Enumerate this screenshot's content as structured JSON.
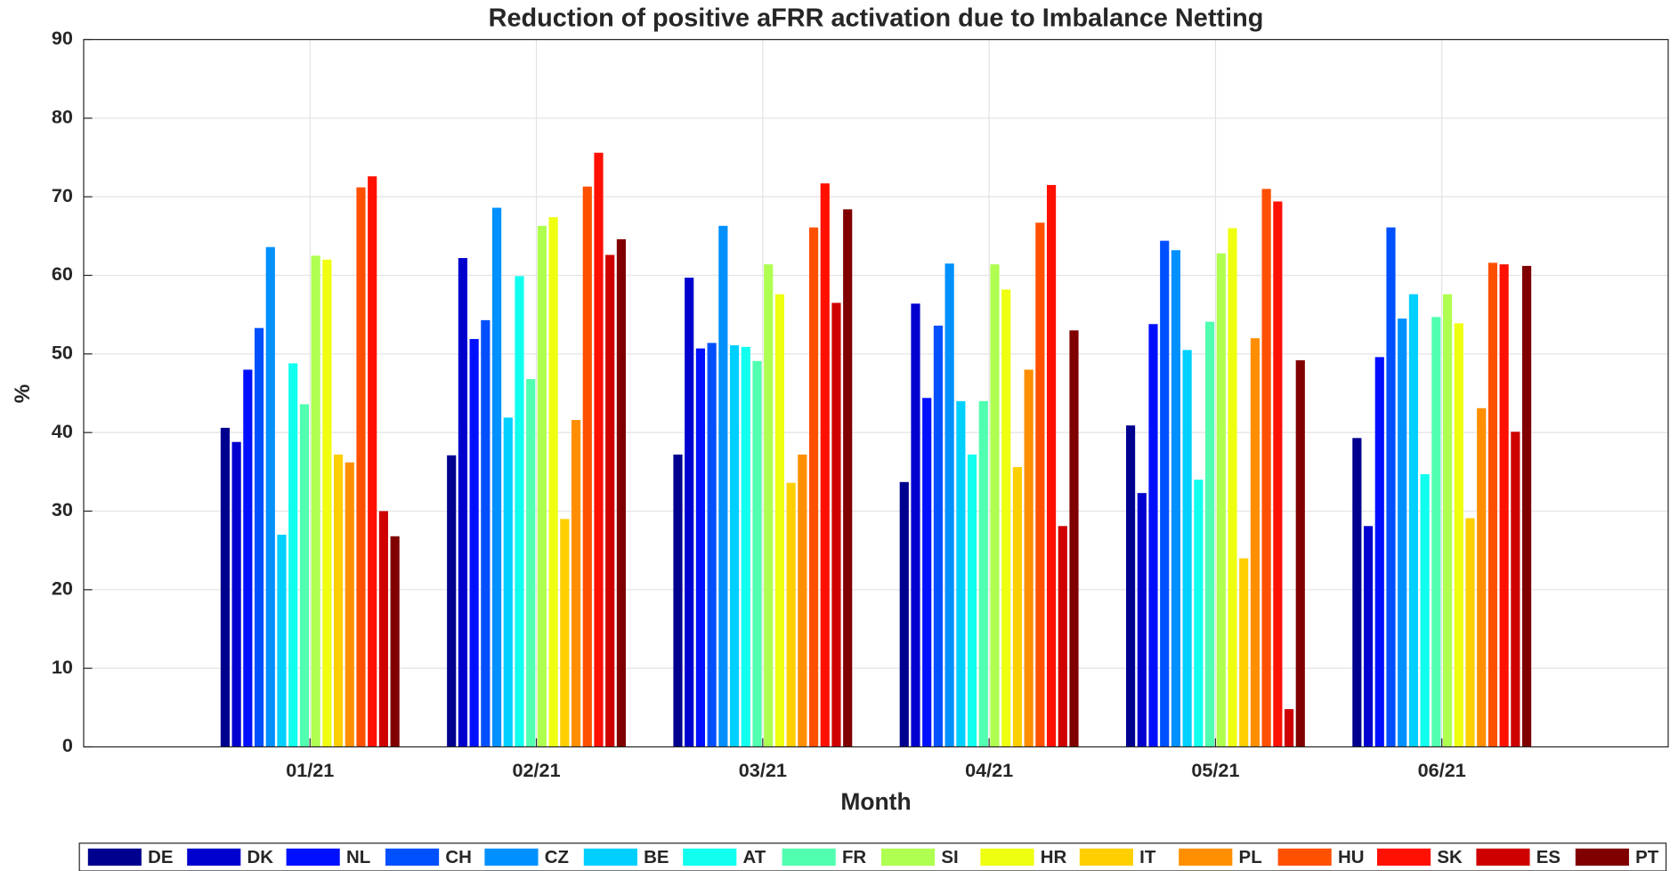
{
  "chart_data": {
    "type": "bar",
    "title": "Reduction of positive aFRR activation due to Imbalance Netting",
    "x_label": "Month",
    "y_label": "%",
    "categories": [
      "01/21",
      "02/21",
      "03/21",
      "04/21",
      "05/21",
      "06/21"
    ],
    "ylim": [
      0,
      90
    ],
    "yticks": [
      0,
      10,
      20,
      30,
      40,
      50,
      60,
      70,
      80,
      90
    ],
    "grid": true,
    "legend": "bottom",
    "series": [
      {
        "name": "DE",
        "color": "#00008f",
        "values": [
          40.6,
          37.1,
          37.2,
          33.7,
          40.9,
          39.3
        ]
      },
      {
        "name": "DK",
        "color": "#0000cf",
        "values": [
          38.8,
          62.2,
          59.7,
          56.4,
          32.3,
          28.1
        ]
      },
      {
        "name": "NL",
        "color": "#0010ff",
        "values": [
          48,
          51.9,
          50.7,
          44.4,
          53.8,
          49.6
        ]
      },
      {
        "name": "CH",
        "color": "#0050ff",
        "values": [
          53.3,
          54.3,
          51.4,
          53.6,
          64.4,
          66.1
        ]
      },
      {
        "name": "CZ",
        "color": "#0090ff",
        "values": [
          63.6,
          68.6,
          66.3,
          61.5,
          63.2,
          54.5
        ]
      },
      {
        "name": "BE",
        "color": "#00d0ff",
        "values": [
          27,
          41.9,
          51.1,
          44,
          50.5,
          57.6
        ]
      },
      {
        "name": "AT",
        "color": "#10ffef",
        "values": [
          48.8,
          59.9,
          50.9,
          37.2,
          34,
          34.7
        ]
      },
      {
        "name": "FR",
        "color": "#50ffaf",
        "values": [
          43.6,
          46.8,
          49.1,
          44,
          54.1,
          54.7
        ]
      },
      {
        "name": "SI",
        "color": "#afff50",
        "values": [
          62.5,
          66.3,
          61.4,
          61.4,
          62.8,
          57.6
        ]
      },
      {
        "name": "HR",
        "color": "#efff10",
        "values": [
          62,
          67.4,
          57.6,
          58.2,
          66,
          53.9
        ]
      },
      {
        "name": "IT",
        "color": "#ffcf00",
        "values": [
          37.2,
          29,
          33.6,
          35.6,
          24,
          29.1
        ]
      },
      {
        "name": "PL",
        "color": "#ff8f00",
        "values": [
          36.2,
          41.6,
          37.2,
          48,
          52,
          43.1
        ]
      },
      {
        "name": "HU",
        "color": "#ff5000",
        "values": [
          71.2,
          71.3,
          66.1,
          66.7,
          71,
          61.6
        ]
      },
      {
        "name": "SK",
        "color": "#ff1000",
        "values": [
          72.6,
          75.6,
          71.7,
          71.5,
          69.4,
          61.4
        ]
      },
      {
        "name": "ES",
        "color": "#cf0000",
        "values": [
          30,
          62.6,
          56.5,
          28.1,
          4.8,
          40.1
        ]
      },
      {
        "name": "PT",
        "color": "#800000",
        "values": [
          26.8,
          64.6,
          68.4,
          53,
          49.2,
          61.2
        ]
      }
    ]
  }
}
